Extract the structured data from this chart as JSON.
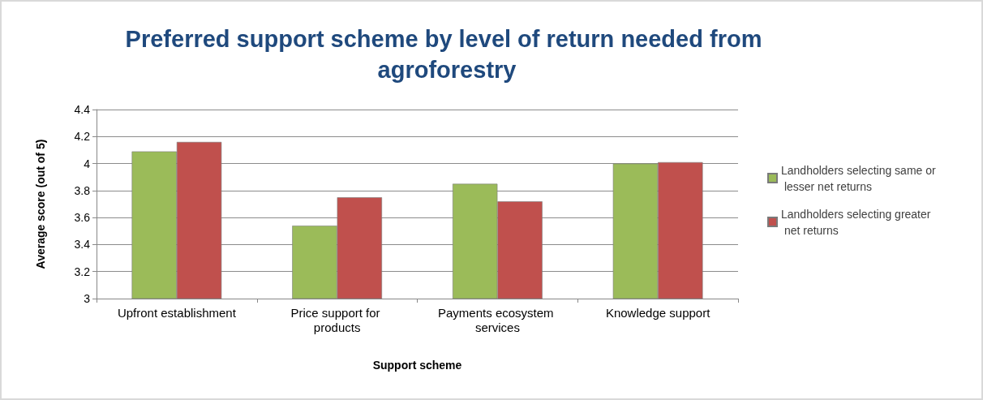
{
  "chart_data": {
    "type": "bar",
    "title": "Preferred support scheme by level of return needed from agroforestry",
    "xlabel": "Support scheme",
    "ylabel": "Average score (out of 5)",
    "categories": [
      "Upfront establishment",
      "Price support for products",
      "Payments ecosystem services",
      "Knowledge support"
    ],
    "series": [
      {
        "name": "Landholders selecting same or lesser net returns",
        "color": "#9bbb59",
        "values": [
          4.09,
          3.54,
          3.85,
          4.0
        ]
      },
      {
        "name": "Landholders selecting greater net returns",
        "color": "#c0504d",
        "values": [
          4.16,
          3.75,
          3.72,
          4.01
        ]
      }
    ],
    "ylim": [
      3,
      4.4
    ],
    "yticks": [
      3,
      3.2,
      3.4,
      3.6,
      3.8,
      4,
      4.2,
      4.4
    ],
    "grid": "y",
    "legend": "right"
  }
}
